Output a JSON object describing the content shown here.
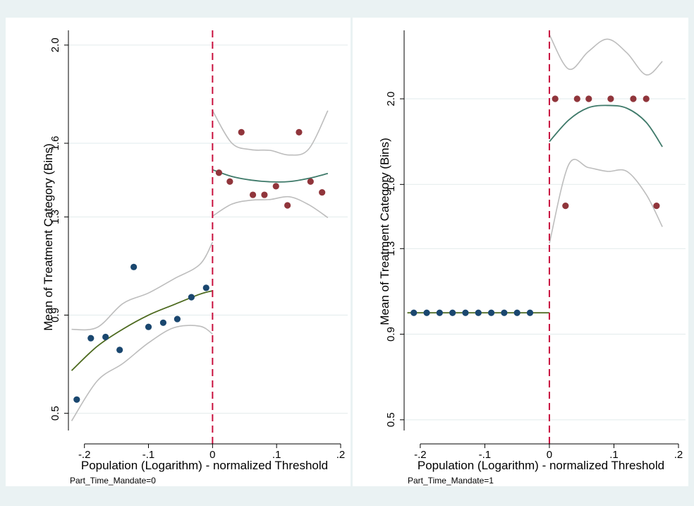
{
  "colors": {
    "background": "#eaf2f3",
    "panel": "#ffffff",
    "gridline": "#e2ebec",
    "axis": "#000000",
    "threshold": "#c8103e",
    "fit_left": "#4d6a1f",
    "fit_right": "#3f7a6a",
    "ci": "#bdbdbd",
    "points_below": "#1a476f",
    "points_above": "#90353b"
  },
  "chart_data": [
    {
      "type": "scatter",
      "panel": "Part_Time_Mandate=0",
      "caption": "Part_Time_Mandate=0",
      "xlabel": "Population (Logarithm) - normalized Threshold",
      "ylabel": "Mean of Treatment Category (Bins)",
      "xlim": [
        -0.225,
        0.2
      ],
      "ylim": [
        0.43,
        2.06
      ],
      "xticks": [
        -0.2,
        -0.1,
        0,
        0.1,
        0.2
      ],
      "xtick_labels": [
        "-.2",
        "-.1",
        "0",
        ".1",
        ".2"
      ],
      "yticks": [
        0.5,
        0.9,
        1.3,
        1.6,
        2.0
      ],
      "ytick_labels": [
        "0.5",
        "0.9",
        "1.3",
        "1.6",
        "2.0"
      ],
      "grid": true,
      "threshold_x": 0,
      "series": [
        {
          "side": "below",
          "x": [
            -0.212,
            -0.19,
            -0.167,
            -0.145,
            -0.123,
            -0.1,
            -0.077,
            -0.055,
            -0.033,
            -0.01
          ],
          "y": [
            0.556,
            0.806,
            0.811,
            0.758,
            1.096,
            0.852,
            0.869,
            0.884,
            0.973,
            1.011
          ]
        },
        {
          "side": "above",
          "x": [
            0.01,
            0.027,
            0.045,
            0.063,
            0.081,
            0.099,
            0.117,
            0.135,
            0.153,
            0.171
          ],
          "y": [
            1.48,
            1.444,
            1.645,
            1.39,
            1.39,
            1.425,
            1.347,
            1.645,
            1.444,
            1.4
          ]
        }
      ],
      "fits": [
        {
          "side": "below",
          "x": [
            -0.22,
            -0.18,
            -0.14,
            -0.1,
            -0.06,
            -0.02,
            0
          ],
          "y": [
            0.674,
            0.773,
            0.843,
            0.9,
            0.943,
            0.985,
            0.999
          ],
          "ci_lower": [
            0.469,
            0.632,
            0.703,
            0.787,
            0.849,
            0.855,
            0.823
          ],
          "ci_upper": [
            0.842,
            0.85,
            0.947,
            0.99,
            1.048,
            1.106,
            1.197
          ]
        },
        {
          "side": "above",
          "x": [
            0,
            0.03,
            0.06,
            0.09,
            0.12,
            0.15,
            0.18
          ],
          "y": [
            1.492,
            1.465,
            1.45,
            1.443,
            1.444,
            1.457,
            1.477
          ],
          "ci_lower": [
            1.303,
            1.352,
            1.368,
            1.371,
            1.382,
            1.35,
            1.297
          ],
          "ci_upper": [
            1.733,
            1.601,
            1.574,
            1.571,
            1.552,
            1.576,
            1.733
          ]
        }
      ]
    },
    {
      "type": "scatter",
      "panel": "Part_Time_Mandate=1",
      "caption": "Part_Time_Mandate=1",
      "xlabel": "Population (Logarithm) - normalized Threshold",
      "ylabel": "Mean of Treatment Category (Bins)",
      "xlim": [
        -0.225,
        0.2
      ],
      "ylim": [
        0.45,
        2.32
      ],
      "xticks": [
        -0.2,
        -0.1,
        0,
        0.1,
        0.2
      ],
      "xtick_labels": [
        "-.2",
        "-.1",
        "0",
        ".1",
        ".2"
      ],
      "yticks": [
        0.5,
        0.9,
        1.3,
        1.6,
        2.0
      ],
      "ytick_labels": [
        "0.5",
        "0.9",
        "1.3",
        "1.6",
        "2.0"
      ],
      "grid": true,
      "threshold_x": 0,
      "series": [
        {
          "side": "below",
          "x": [
            -0.21,
            -0.19,
            -0.17,
            -0.15,
            -0.13,
            -0.11,
            -0.09,
            -0.07,
            -0.05,
            -0.03
          ],
          "y": [
            1.0,
            1.0,
            1.0,
            1.0,
            1.0,
            1.0,
            1.0,
            1.0,
            1.0,
            1.0
          ]
        },
        {
          "side": "above",
          "x": [
            0.009,
            0.025,
            0.043,
            0.061,
            0.095,
            0.13,
            0.15,
            0.166
          ],
          "y": [
            2.0,
            1.5,
            2.0,
            2.0,
            2.0,
            2.0,
            2.0,
            1.5
          ]
        }
      ],
      "fits": [
        {
          "side": "below",
          "x": [
            -0.22,
            0
          ],
          "y": [
            1.0,
            1.0
          ],
          "ci_lower": [
            1.0,
            1.0
          ],
          "ci_upper": [
            1.0,
            1.0
          ]
        },
        {
          "side": "above",
          "x": [
            0,
            0.03,
            0.06,
            0.09,
            0.12,
            0.15,
            0.175
          ],
          "y": [
            1.8,
            1.901,
            1.958,
            1.969,
            1.956,
            1.89,
            1.776
          ],
          "ci_lower": [
            1.324,
            1.693,
            1.679,
            1.661,
            1.661,
            1.553,
            1.402
          ],
          "ci_upper": [
            2.3,
            2.139,
            2.22,
            2.279,
            2.215,
            2.112,
            2.175
          ]
        }
      ]
    }
  ]
}
